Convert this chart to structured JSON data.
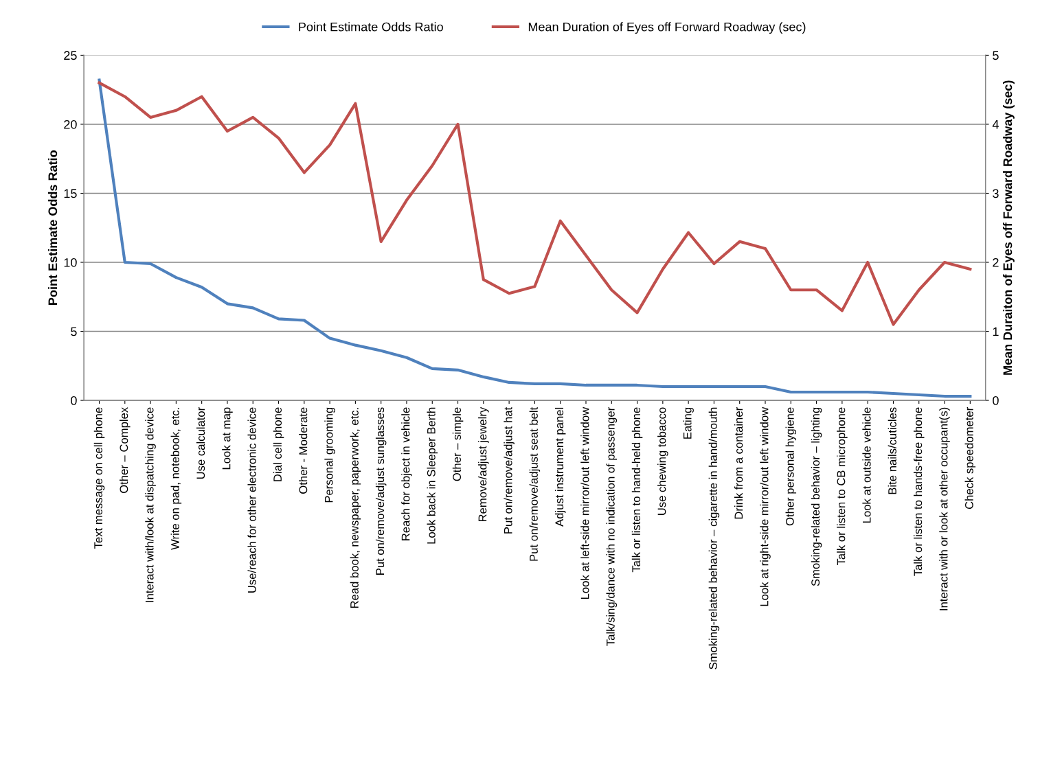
{
  "chart_data": {
    "type": "line",
    "ylabel": "Point Estimate Odds Ratio",
    "y2label": "Mean Duraiton of Eyes off Forward Roadway (sec)",
    "categories": [
      "Text message on cell phone",
      "Other – Complex",
      "Interact with/look at dispatching device",
      "Write on pad, notebook, etc.",
      "Use calculator",
      "Look at map",
      "Use/reach for other electronic device",
      "Dial cell phone",
      "Other - Moderate",
      "Personal grooming",
      "Read book, newspaper, paperwork, etc.",
      "Put on/remove/adjust sunglasses",
      "Reach for object in vehicle",
      "Look back in Sleeper Berth",
      "Other – simple",
      "Remove/adjust jewelry",
      "Put on/remove/adjust hat",
      "Put on/remove/adjust seat belt",
      "Adjust instrument panel",
      "Look at left-side mirror/out left window",
      "Talk/sing/dance with no indication of passenger",
      "Talk or listen to hand-held phone",
      "Use chewing tobacco",
      "Eating",
      "Smoking-related behavior – cigarette in hand/mouth",
      "Drink from a container",
      "Look at right-side mirror/out left window",
      "Other personal hygiene",
      "Smoking-related behavior – lighting",
      "Talk or listen to CB microphone",
      "Look at outside vehicle",
      "Bite nails/cuticles",
      "Talk or listen to hands-free phone",
      "Interact with or look at other occupant(s)",
      "Check speedometer"
    ],
    "series": [
      {
        "name": "Point Estimate Odds Ratio",
        "color": "#4f81bd",
        "values": [
          23.2,
          10.0,
          9.9,
          8.9,
          8.2,
          7.0,
          6.7,
          5.9,
          5.8,
          4.5,
          4.0,
          3.6,
          3.1,
          2.3,
          2.2,
          1.7,
          1.3,
          1.2,
          1.2,
          1.1,
          1.1,
          1.1,
          1.0,
          1.0,
          1.0,
          1.0,
          1.0,
          0.6,
          0.6,
          0.6,
          0.6,
          0.5,
          0.4,
          0.3,
          0.3
        ]
      },
      {
        "name": "Mean Duration of Eyes off Forward Roadway (sec)",
        "color": "#c0504d",
        "axis": "y2",
        "values": [
          4.6,
          4.4,
          4.1,
          4.2,
          4.4,
          3.9,
          4.1,
          3.8,
          3.3,
          3.7,
          4.3,
          2.3,
          2.9,
          3.4,
          4.0,
          1.75,
          1.55,
          1.65,
          2.6,
          2.1,
          1.6,
          1.27,
          1.9,
          2.43,
          1.98,
          2.3,
          2.2,
          1.6,
          1.6,
          1.3,
          2.0,
          1.1,
          1.6,
          2.0,
          1.9
        ]
      }
    ],
    "ylim": [
      0,
      25
    ],
    "yticks": [
      0,
      5,
      10,
      15,
      20,
      25
    ],
    "y2lim": [
      0,
      5
    ],
    "y2ticks": [
      0,
      1,
      2,
      3,
      4,
      5
    ],
    "grid": "y",
    "legend": "top",
    "marker": "none",
    "line_style": "solid"
  }
}
